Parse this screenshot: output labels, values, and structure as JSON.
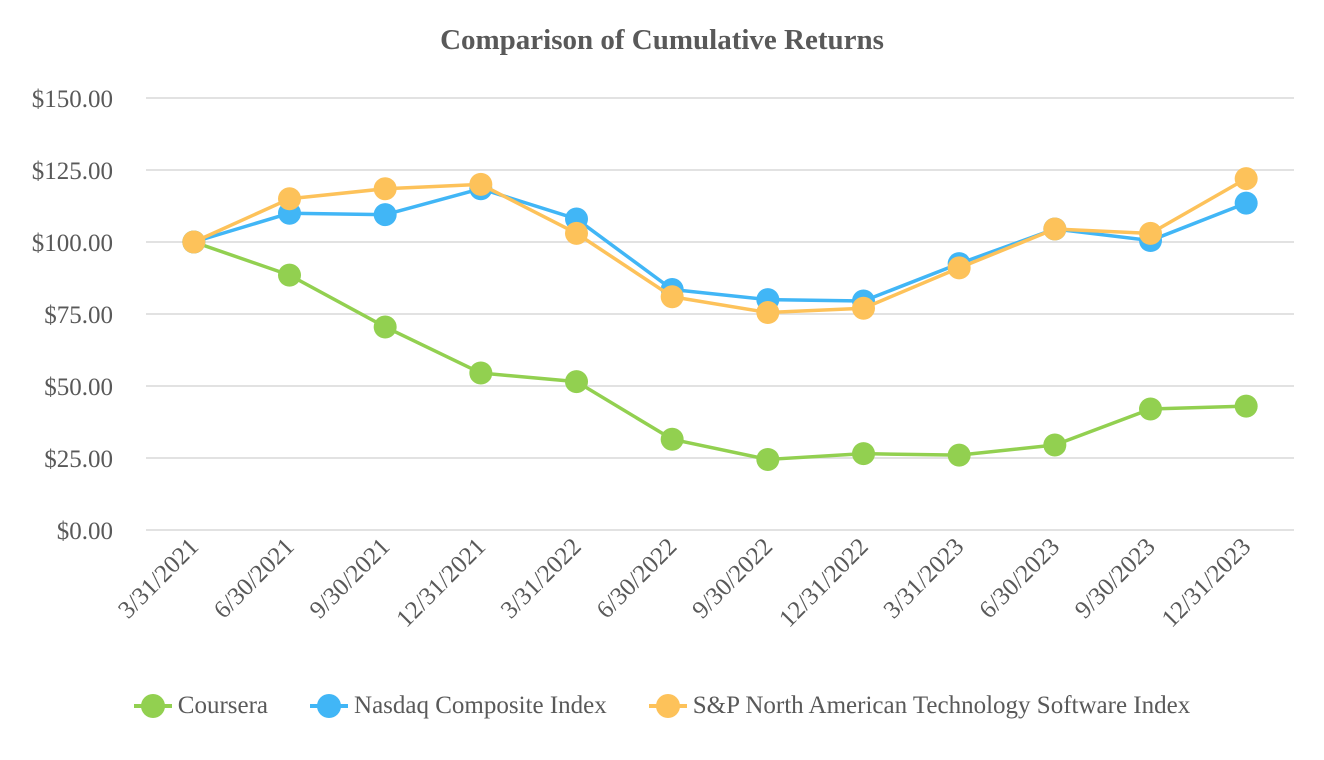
{
  "chart_data": {
    "type": "line",
    "title": "Comparison of Cumulative Returns",
    "xlabel": "",
    "ylabel": "",
    "categories": [
      "3/31/2021",
      "6/30/2021",
      "9/30/2021",
      "12/31/2021",
      "3/31/2022",
      "6/30/2022",
      "9/30/2022",
      "12/31/2022",
      "3/31/2023",
      "6/30/2023",
      "9/30/2023",
      "12/31/2023"
    ],
    "ylim": [
      0,
      150
    ],
    "yticks": [
      0,
      25,
      50,
      75,
      100,
      125,
      150
    ],
    "ytick_labels": [
      "$0.00",
      "$25.00",
      "$50.00",
      "$75.00",
      "$100.00",
      "$125.00",
      "$150.00"
    ],
    "grid": true,
    "legend_position": "bottom",
    "series": [
      {
        "name": "Coursera",
        "color": "#92d050",
        "values": [
          100,
          88.5,
          70.5,
          54.5,
          51.5,
          31.5,
          24.5,
          26.5,
          26,
          29.5,
          42,
          43
        ]
      },
      {
        "name": "Nasdaq Composite Index",
        "color": "#41b6f6",
        "values": [
          100,
          110,
          109.5,
          118.5,
          108,
          83.5,
          80,
          79.5,
          92.5,
          104.5,
          100.5,
          113.5
        ]
      },
      {
        "name": "S&P North American Technology Software Index",
        "color": "#fdc25a",
        "values": [
          100,
          115,
          118.5,
          120,
          103,
          81,
          75.5,
          77,
          91,
          104.5,
          103,
          122
        ]
      }
    ]
  }
}
